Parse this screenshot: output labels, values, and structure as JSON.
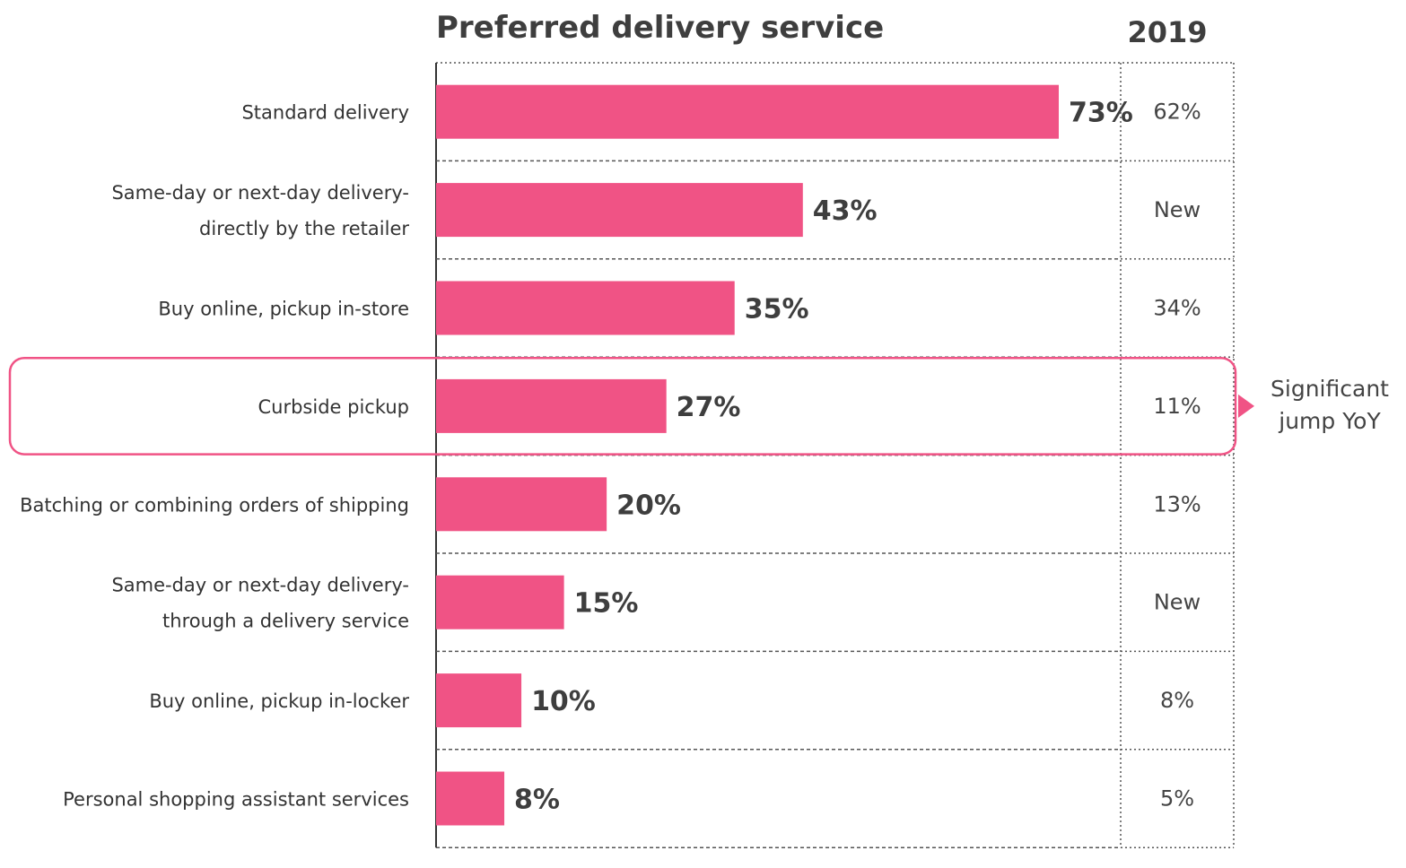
{
  "chart_data": {
    "type": "bar",
    "orientation": "horizontal",
    "title": "Preferred delivery service",
    "categories": [
      [
        "Standard delivery"
      ],
      [
        "Same-day or next-day delivery-",
        "directly by the retailer"
      ],
      [
        "Buy online, pickup in-store"
      ],
      [
        "Curbside pickup"
      ],
      [
        "Batching or combining orders of shipping"
      ],
      [
        "Same-day or next-day delivery-",
        "through a delivery service"
      ],
      [
        "Buy online, pickup in-locker"
      ],
      [
        "Personal shopping assistant services"
      ]
    ],
    "values": [
      73,
      43,
      35,
      27,
      20,
      15,
      10,
      8
    ],
    "value_labels": [
      "73%",
      "43%",
      "35%",
      "27%",
      "20%",
      "15%",
      "10%",
      "8%"
    ],
    "xlim": [
      0,
      80
    ],
    "comparison_column": {
      "header": "2019",
      "values": [
        "62%",
        "New",
        "34%",
        "11%",
        "13%",
        "New",
        "8%",
        "5%"
      ]
    },
    "highlight": {
      "category_index": 3,
      "note": [
        "Significant",
        "jump YoY"
      ]
    },
    "colors": {
      "bar": "#f05385",
      "highlight": "#f05385",
      "grid": "#555555"
    },
    "grid": "dashed row separators",
    "legend": "none"
  }
}
